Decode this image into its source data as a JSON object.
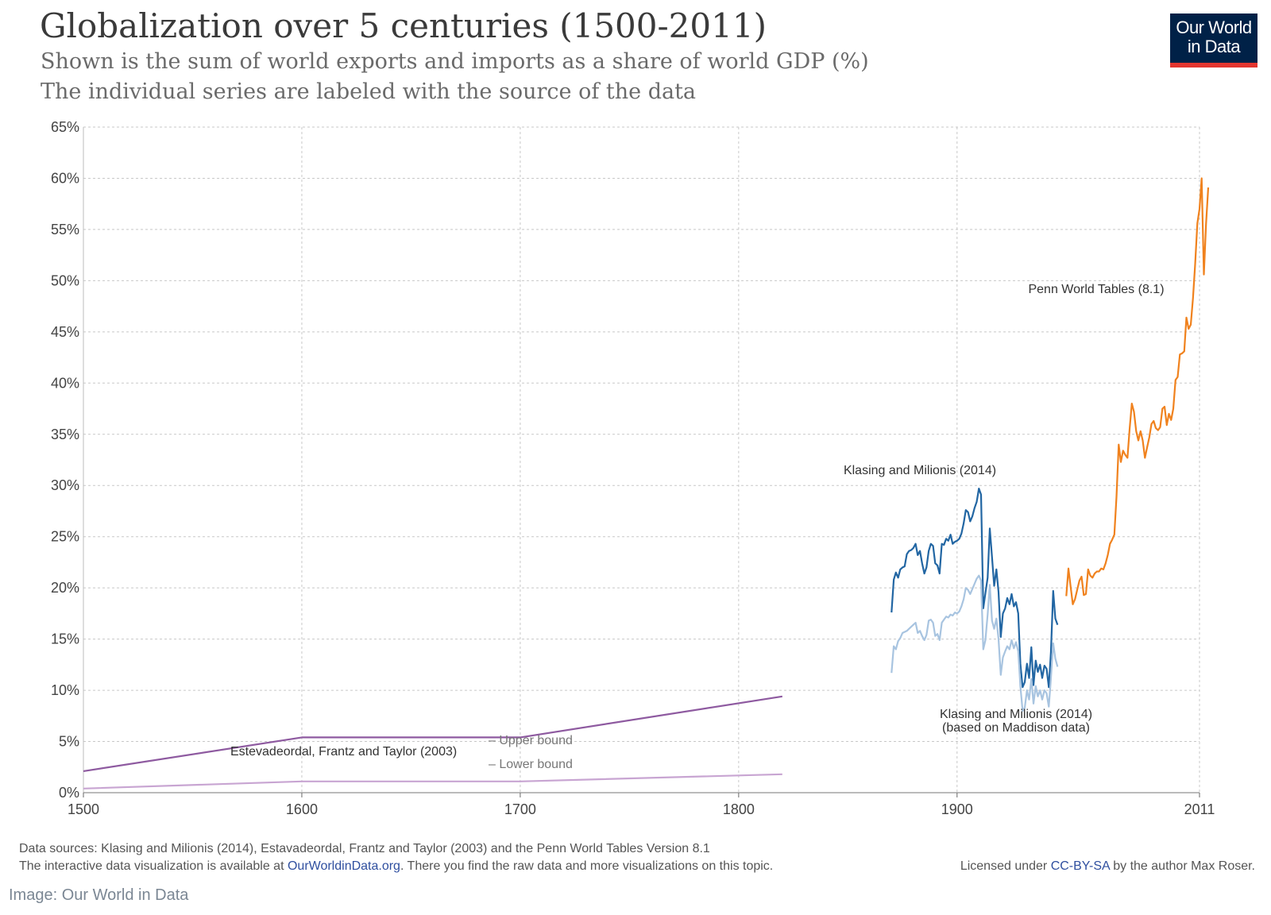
{
  "title": "Globalization over 5 centuries (1500-2011)",
  "subtitle_line1": "Shown is the sum of world exports and imports as a share of world GDP (%)",
  "subtitle_line2": "The individual series are labeled with the source of the data",
  "logo": {
    "line1": "Our World",
    "line2": "in Data",
    "bg_color": "#002147",
    "accent_color": "#e3342f"
  },
  "footer": {
    "sources": "Data sources: Klasing and Milionis (2014), Estavadeordal, Frantz and Taylor (2003) and the Penn World Tables Version 8.1",
    "interactive_prefix": "The interactive data visualization is available at ",
    "interactive_link": "OurWorldinData.org",
    "interactive_suffix": ". There you find the raw data and more visualizations on this topic.",
    "license_prefix": "Licensed under ",
    "license_link": "CC-BY-SA",
    "license_suffix": " by the author Max Roser."
  },
  "credit": "Image: Our World in Data",
  "chart_data": {
    "type": "line",
    "xlim": [
      1500,
      2011
    ],
    "ylim": [
      0,
      65
    ],
    "x_ticks": [
      1500,
      1600,
      1700,
      1800,
      1900,
      2011
    ],
    "y_ticks": [
      0,
      5,
      10,
      15,
      20,
      25,
      30,
      35,
      40,
      45,
      50,
      55,
      60,
      65
    ],
    "y_tick_suffix": "%",
    "grid": true,
    "series": [
      {
        "name": "Estevadeordal, Frantz and Taylor (2003)",
        "key": "eft_upper",
        "color": "#8e5aa0",
        "points": [
          [
            1500,
            2.1
          ],
          [
            1600,
            5.4
          ],
          [
            1700,
            5.4
          ],
          [
            1820,
            9.4
          ]
        ]
      },
      {
        "key": "eft_lower",
        "color": "#c8a5d2",
        "points": [
          [
            1500,
            0.4
          ],
          [
            1600,
            1.1
          ],
          [
            1700,
            1.1
          ],
          [
            1820,
            1.8
          ]
        ]
      },
      {
        "name": "Klasing and Milionis (2014)",
        "key": "km",
        "color": "#2266a3",
        "points": [
          [
            1870,
            17.6
          ],
          [
            1871,
            20.8
          ],
          [
            1872,
            21.5
          ],
          [
            1873,
            21.0
          ],
          [
            1874,
            21.8
          ],
          [
            1875,
            22.0
          ],
          [
            1876,
            22.1
          ],
          [
            1877,
            23.3
          ],
          [
            1878,
            23.6
          ],
          [
            1879,
            23.7
          ],
          [
            1880,
            23.9
          ],
          [
            1881,
            24.3
          ],
          [
            1882,
            23.2
          ],
          [
            1883,
            23.6
          ],
          [
            1884,
            22.4
          ],
          [
            1885,
            21.4
          ],
          [
            1886,
            22.0
          ],
          [
            1887,
            23.6
          ],
          [
            1888,
            24.3
          ],
          [
            1889,
            24.1
          ],
          [
            1890,
            22.4
          ],
          [
            1891,
            22.2
          ],
          [
            1892,
            21.4
          ],
          [
            1893,
            24.3
          ],
          [
            1894,
            24.2
          ],
          [
            1895,
            24.8
          ],
          [
            1896,
            24.6
          ],
          [
            1897,
            25.2
          ],
          [
            1898,
            24.3
          ],
          [
            1899,
            24.5
          ],
          [
            1900,
            24.6
          ],
          [
            1901,
            24.8
          ],
          [
            1902,
            25.3
          ],
          [
            1903,
            26.3
          ],
          [
            1904,
            27.6
          ],
          [
            1905,
            27.4
          ],
          [
            1906,
            26.5
          ],
          [
            1907,
            27.0
          ],
          [
            1908,
            27.8
          ],
          [
            1909,
            28.4
          ],
          [
            1910,
            29.7
          ],
          [
            1911,
            29.1
          ],
          [
            1912,
            18.0
          ],
          [
            1913,
            19.5
          ],
          [
            1914,
            21.0
          ],
          [
            1915,
            25.8
          ],
          [
            1916,
            23.0
          ],
          [
            1917,
            20.2
          ],
          [
            1918,
            21.8
          ],
          [
            1919,
            19.6
          ],
          [
            1920,
            15.2
          ],
          [
            1921,
            17.5
          ],
          [
            1922,
            18.0
          ],
          [
            1923,
            19.0
          ],
          [
            1924,
            18.4
          ],
          [
            1925,
            19.4
          ],
          [
            1926,
            18.2
          ],
          [
            1927,
            18.6
          ],
          [
            1928,
            17.5
          ],
          [
            1929,
            12.6
          ],
          [
            1930,
            10.3
          ],
          [
            1931,
            10.8
          ],
          [
            1932,
            12.6
          ],
          [
            1933,
            11.2
          ],
          [
            1934,
            14.2
          ],
          [
            1935,
            10.5
          ],
          [
            1936,
            12.9
          ],
          [
            1937,
            11.8
          ],
          [
            1938,
            12.5
          ],
          [
            1939,
            11.2
          ],
          [
            1940,
            12.4
          ],
          [
            1941,
            12.1
          ],
          [
            1942,
            10.3
          ],
          [
            1943,
            13.8
          ],
          [
            1944,
            19.7
          ],
          [
            1945,
            17.0
          ],
          [
            1946,
            16.4
          ]
        ]
      },
      {
        "name": "Klasing and Milionis (2014) (based on Maddison data)",
        "key": "km_maddison",
        "color": "#a8c4e0",
        "points": [
          [
            1870,
            11.7
          ],
          [
            1871,
            14.3
          ],
          [
            1872,
            14.0
          ],
          [
            1873,
            14.8
          ],
          [
            1874,
            15.1
          ],
          [
            1875,
            15.6
          ],
          [
            1876,
            15.7
          ],
          [
            1877,
            15.8
          ],
          [
            1878,
            16.0
          ],
          [
            1879,
            16.2
          ],
          [
            1880,
            16.4
          ],
          [
            1881,
            16.6
          ],
          [
            1882,
            15.6
          ],
          [
            1883,
            15.8
          ],
          [
            1884,
            15.3
          ],
          [
            1885,
            14.9
          ],
          [
            1886,
            15.4
          ],
          [
            1887,
            16.8
          ],
          [
            1888,
            16.9
          ],
          [
            1889,
            16.6
          ],
          [
            1890,
            15.3
          ],
          [
            1891,
            15.5
          ],
          [
            1892,
            14.9
          ],
          [
            1893,
            16.6
          ],
          [
            1894,
            16.9
          ],
          [
            1895,
            17.2
          ],
          [
            1896,
            17.1
          ],
          [
            1897,
            17.4
          ],
          [
            1898,
            17.3
          ],
          [
            1899,
            17.6
          ],
          [
            1900,
            17.5
          ],
          [
            1901,
            17.7
          ],
          [
            1902,
            18.2
          ],
          [
            1903,
            18.9
          ],
          [
            1904,
            20.0
          ],
          [
            1905,
            19.8
          ],
          [
            1906,
            19.4
          ],
          [
            1907,
            19.9
          ],
          [
            1908,
            20.4
          ],
          [
            1909,
            20.9
          ],
          [
            1910,
            21.2
          ],
          [
            1911,
            20.7
          ],
          [
            1912,
            14.0
          ],
          [
            1913,
            14.9
          ],
          [
            1914,
            17.4
          ],
          [
            1915,
            20.3
          ],
          [
            1916,
            16.8
          ],
          [
            1917,
            16.0
          ],
          [
            1918,
            17.0
          ],
          [
            1919,
            15.0
          ],
          [
            1920,
            11.5
          ],
          [
            1921,
            13.2
          ],
          [
            1922,
            13.8
          ],
          [
            1923,
            14.3
          ],
          [
            1924,
            14.0
          ],
          [
            1925,
            14.9
          ],
          [
            1926,
            14.1
          ],
          [
            1927,
            14.7
          ],
          [
            1928,
            13.8
          ],
          [
            1929,
            10.4
          ],
          [
            1930,
            8.0
          ],
          [
            1931,
            8.3
          ],
          [
            1932,
            10.0
          ],
          [
            1933,
            9.1
          ],
          [
            1934,
            11.1
          ],
          [
            1935,
            8.7
          ],
          [
            1936,
            10.4
          ],
          [
            1937,
            9.4
          ],
          [
            1938,
            10.0
          ],
          [
            1939,
            9.1
          ],
          [
            1940,
            10.0
          ],
          [
            1941,
            9.7
          ],
          [
            1942,
            8.4
          ],
          [
            1943,
            11.2
          ],
          [
            1944,
            14.6
          ],
          [
            1945,
            13.1
          ],
          [
            1946,
            12.3
          ]
        ]
      },
      {
        "name": "Penn World Tables (8.1)",
        "key": "pwt",
        "color": "#f0821e",
        "points": [
          [
            1950,
            19.2
          ],
          [
            1951,
            21.9
          ],
          [
            1952,
            20.1
          ],
          [
            1953,
            18.4
          ],
          [
            1954,
            18.9
          ],
          [
            1955,
            19.8
          ],
          [
            1956,
            20.7
          ],
          [
            1957,
            21.1
          ],
          [
            1958,
            19.3
          ],
          [
            1959,
            19.4
          ],
          [
            1960,
            21.8
          ],
          [
            1961,
            21.2
          ],
          [
            1962,
            21.0
          ],
          [
            1963,
            21.4
          ],
          [
            1964,
            21.6
          ],
          [
            1965,
            21.6
          ],
          [
            1966,
            21.9
          ],
          [
            1967,
            21.8
          ],
          [
            1968,
            22.4
          ],
          [
            1969,
            23.2
          ],
          [
            1970,
            24.3
          ],
          [
            1971,
            24.7
          ],
          [
            1972,
            25.2
          ],
          [
            1973,
            28.9
          ],
          [
            1974,
            34.0
          ],
          [
            1975,
            32.3
          ],
          [
            1976,
            33.4
          ],
          [
            1977,
            33.0
          ],
          [
            1978,
            32.7
          ],
          [
            1979,
            35.5
          ],
          [
            1980,
            38.0
          ],
          [
            1981,
            37.2
          ],
          [
            1982,
            35.3
          ],
          [
            1983,
            34.4
          ],
          [
            1984,
            35.3
          ],
          [
            1985,
            34.4
          ],
          [
            1986,
            32.7
          ],
          [
            1987,
            33.7
          ],
          [
            1988,
            34.7
          ],
          [
            1989,
            36.0
          ],
          [
            1990,
            36.3
          ],
          [
            1991,
            35.6
          ],
          [
            1992,
            35.4
          ],
          [
            1993,
            35.7
          ],
          [
            1994,
            37.5
          ],
          [
            1995,
            37.7
          ],
          [
            1996,
            35.9
          ],
          [
            1997,
            37.0
          ],
          [
            1998,
            36.4
          ],
          [
            1999,
            37.5
          ],
          [
            2000,
            40.3
          ],
          [
            2001,
            40.6
          ],
          [
            2002,
            42.8
          ],
          [
            2003,
            42.9
          ],
          [
            2004,
            43.1
          ],
          [
            2005,
            46.4
          ],
          [
            2006,
            45.3
          ],
          [
            2007,
            45.7
          ],
          [
            2008,
            48.3
          ],
          [
            2009,
            51.6
          ],
          [
            2010,
            55.6
          ],
          [
            2011,
            57.0
          ],
          [
            2012,
            60.0
          ],
          [
            2013,
            50.6
          ],
          [
            2014,
            55.5
          ],
          [
            2015,
            59.1
          ]
        ]
      }
    ],
    "annotations": [
      {
        "key": "eft",
        "text": "Estevadeordal, Frantz and Taylor (2003)"
      },
      {
        "key": "upper",
        "text": "– Upper bound"
      },
      {
        "key": "lower",
        "text": "– Lower bound"
      },
      {
        "key": "km",
        "text": "Klasing and Milionis (2014)"
      },
      {
        "key": "kmm1",
        "text": "Klasing and Milionis (2014)"
      },
      {
        "key": "kmm2",
        "text": "(based on Maddison data)"
      },
      {
        "key": "pwt",
        "text": "Penn World Tables (8.1)"
      }
    ]
  }
}
